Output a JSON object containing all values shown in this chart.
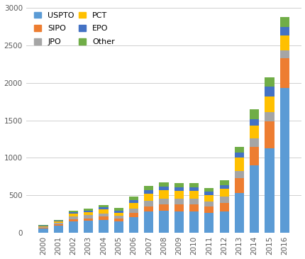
{
  "years": [
    "2000",
    "2001",
    "2002",
    "2003",
    "2004",
    "2005",
    "2006",
    "2007",
    "2008",
    "2009",
    "2010",
    "2011",
    "2012",
    "2013",
    "2014",
    "2015",
    "2016"
  ],
  "USPTO": [
    60,
    100,
    155,
    160,
    170,
    155,
    210,
    285,
    295,
    290,
    290,
    270,
    290,
    530,
    900,
    1130,
    1930
  ],
  "SIPO": [
    8,
    15,
    30,
    35,
    45,
    35,
    55,
    70,
    85,
    90,
    90,
    80,
    110,
    200,
    250,
    360,
    400
  ],
  "JPO": [
    12,
    18,
    35,
    40,
    45,
    35,
    55,
    70,
    80,
    80,
    80,
    65,
    80,
    90,
    110,
    120,
    100
  ],
  "PCT": [
    8,
    18,
    35,
    40,
    55,
    45,
    80,
    100,
    110,
    100,
    100,
    90,
    110,
    180,
    165,
    210,
    200
  ],
  "EPO": [
    8,
    12,
    22,
    22,
    25,
    25,
    35,
    45,
    48,
    48,
    48,
    42,
    48,
    70,
    90,
    125,
    115
  ],
  "Other": [
    8,
    12,
    20,
    25,
    35,
    35,
    45,
    55,
    58,
    58,
    58,
    52,
    60,
    80,
    135,
    130,
    130
  ],
  "colors": {
    "USPTO": "#5B9BD5",
    "SIPO": "#ED7D31",
    "JPO": "#A5A5A5",
    "PCT": "#FFC000",
    "EPO": "#4472C4",
    "Other": "#70AD47"
  },
  "ylim": [
    0,
    3050
  ],
  "yticks": [
    0,
    500,
    1000,
    1500,
    2000,
    2500,
    3000
  ],
  "legend_pairs": [
    [
      "USPTO",
      "SIPO"
    ],
    [
      "JPO",
      "PCT"
    ],
    [
      "EPO",
      "Other"
    ]
  ],
  "stack_order": [
    "USPTO",
    "SIPO",
    "JPO",
    "PCT",
    "EPO",
    "Other"
  ],
  "background_color": "#FFFFFF",
  "grid_color": "#D0D0D0"
}
